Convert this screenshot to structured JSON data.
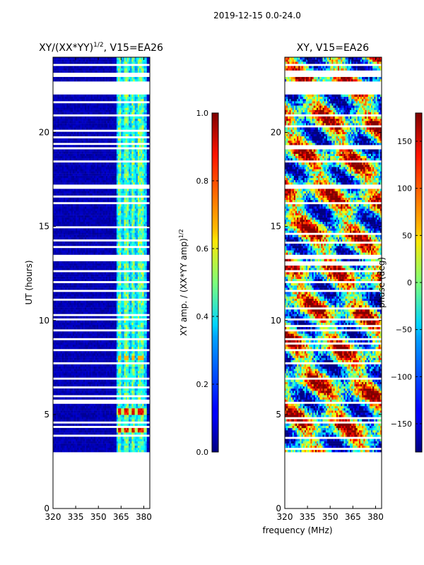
{
  "figure": {
    "suptitle": "2019-12-15 0.0-24.0",
    "shared_xlabel": "frequency (MHz)"
  },
  "chart_data": [
    {
      "type": "heatmap",
      "title_main": "XY/(XX*YY)",
      "title_sup": "1/2",
      "title_tail": ", V15=EA26",
      "xlabel": "",
      "ylabel": "UT (hours)",
      "xlim": [
        320,
        384
      ],
      "ylim": [
        0,
        24
      ],
      "xticks": [
        320,
        335,
        350,
        365,
        380
      ],
      "yticks": [
        0,
        5,
        10,
        15,
        20
      ],
      "colorbar": {
        "label_main": "XY amp. / (XX*YY amp)",
        "label_sup": "1/2",
        "range": [
          0.0,
          1.0
        ],
        "ticks": [
          "0.0",
          "0.2",
          "0.4",
          "0.6",
          "0.8",
          "1.0"
        ],
        "tick_values": [
          0.0,
          0.2,
          0.4,
          0.6,
          0.8,
          1.0
        ],
        "colormap": "jet"
      },
      "data_coverage_hours": [
        3.0,
        24.0
      ],
      "band_notes": "Mostly low values (~0) except enhanced channels near 362-382 MHz; high values near 4.2 UT and 5.2 UT in band 363-380 MHz."
    },
    {
      "type": "heatmap",
      "title_main": "XY, V15=EA26",
      "title_sup": "",
      "title_tail": "",
      "xlabel": "",
      "ylabel": "",
      "xlim": [
        320,
        384
      ],
      "ylim": [
        0,
        24
      ],
      "xticks": [
        320,
        335,
        350,
        365,
        380
      ],
      "yticks": [
        0,
        5,
        10,
        15,
        20
      ],
      "colorbar": {
        "label_main": "phase (deg)",
        "label_sup": "",
        "range": [
          -180,
          180
        ],
        "ticks": [
          "−150",
          "−100",
          "−50",
          "0",
          "50",
          "100",
          "150"
        ],
        "tick_values": [
          -150,
          -100,
          -50,
          0,
          50,
          100,
          150
        ],
        "colormap": "jet"
      },
      "data_coverage_hours": [
        3.0,
        24.0
      ],
      "band_notes": "Phase varies across full range; noisy structure across all frequencies."
    }
  ],
  "colors": {
    "jet_low": "#00007f",
    "jet_high": "#7f0000",
    "frame": "#000000"
  }
}
